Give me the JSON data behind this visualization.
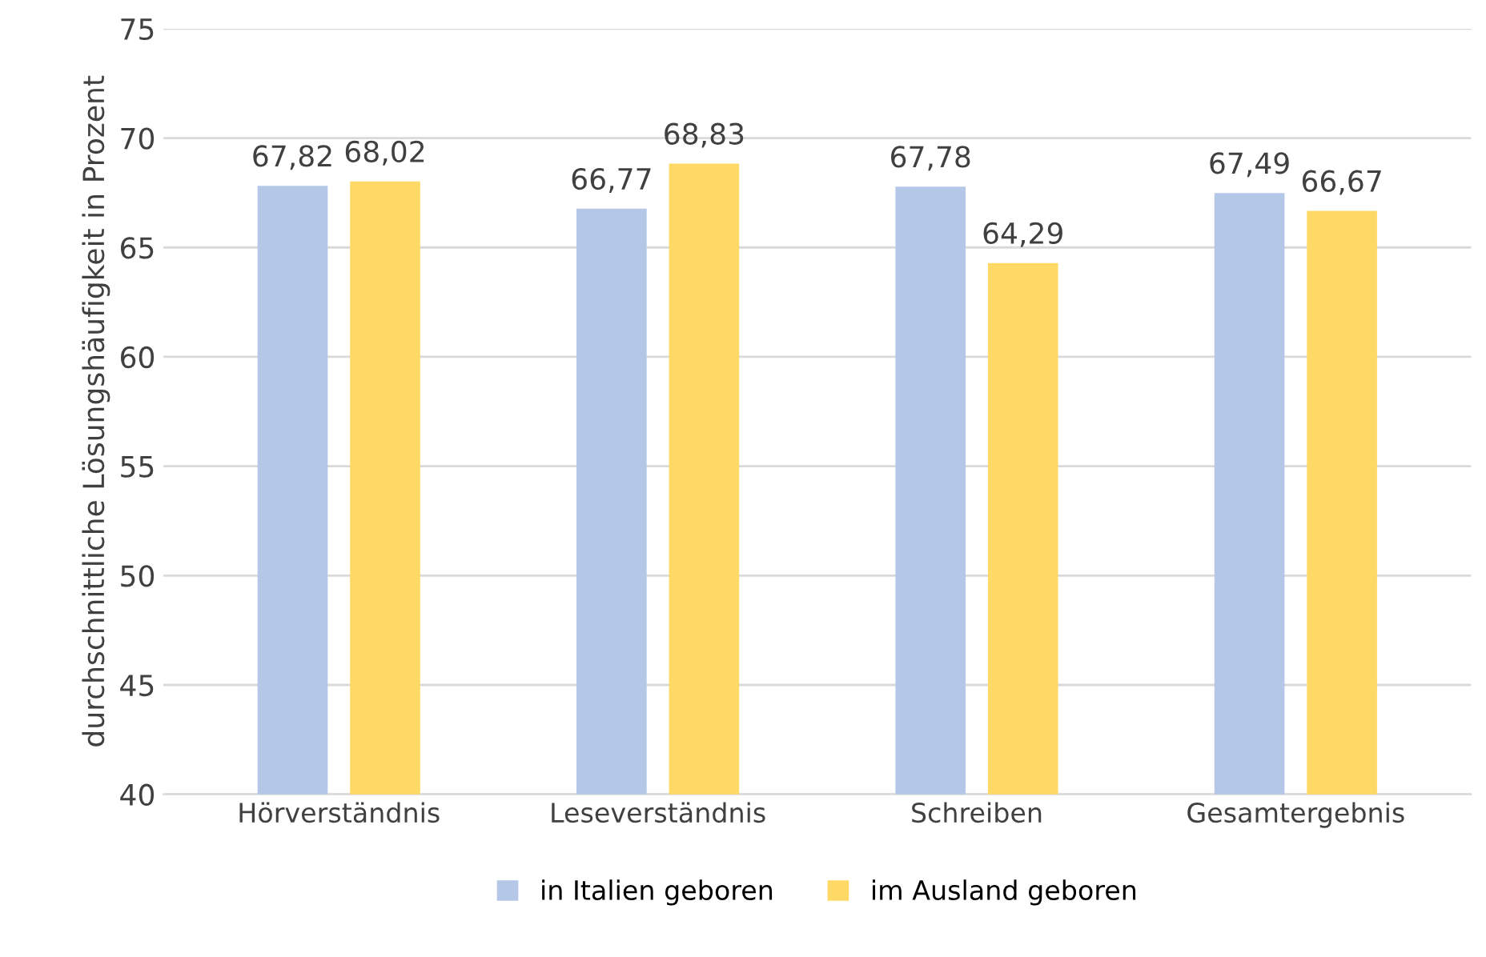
{
  "chart_data": {
    "type": "bar",
    "ylabel": "durchschnittliche Lösungshäufigkeit in Prozent",
    "categories": [
      "Hörverständnis",
      "Leseverständnis",
      "Schreiben",
      "Gesamtergebnis"
    ],
    "series": [
      {
        "name": "in Italien geboren",
        "color": "#b4c7e7",
        "values": [
          67.82,
          66.77,
          67.78,
          67.49
        ],
        "value_labels": [
          "67,82",
          "66,77",
          "67,78",
          "67,49"
        ]
      },
      {
        "name": "im Ausland geboren",
        "color": "#ffd966",
        "values": [
          68.02,
          68.83,
          64.29,
          66.67
        ],
        "value_labels": [
          "68,02",
          "68,83",
          "64,29",
          "66,67"
        ]
      }
    ],
    "ylim": [
      40,
      75
    ],
    "yticks": [
      40,
      45,
      50,
      55,
      60,
      65,
      70,
      75
    ],
    "grid": "y",
    "legend": "bottom"
  }
}
